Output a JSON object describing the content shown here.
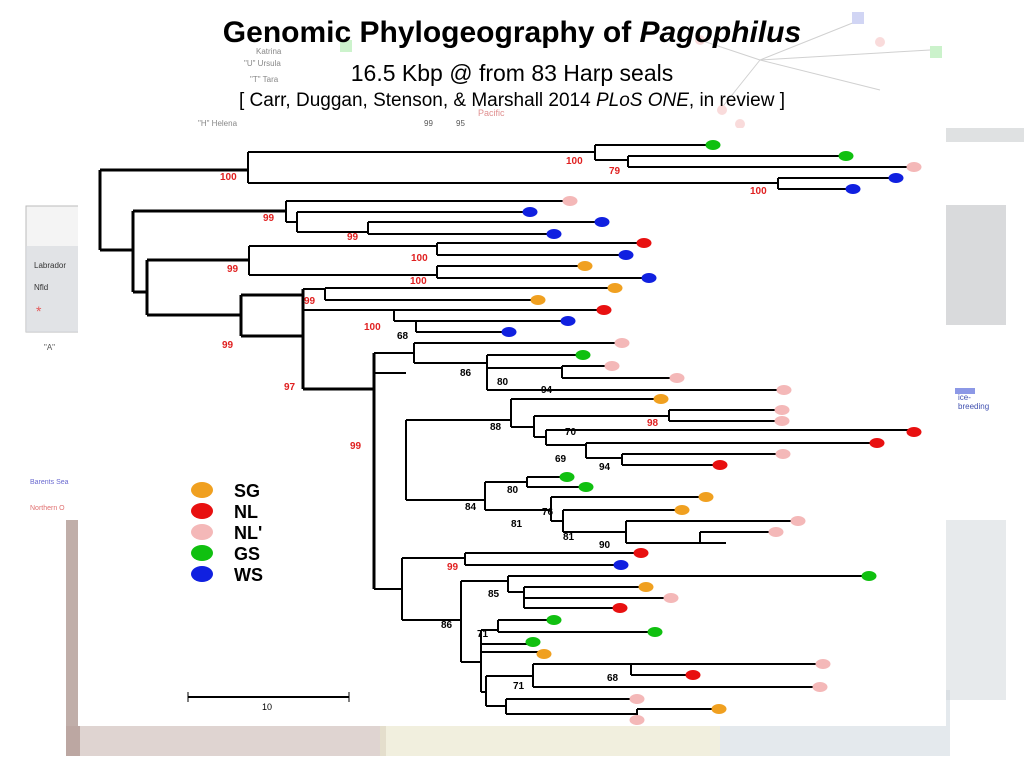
{
  "title": {
    "main_prefix": "Genomic Phylogeography of ",
    "main_italic": "Pagophilus",
    "subtitle": "16.5 Kbp @ from 83 Harp seals",
    "citation_prefix": "[ Carr, Duggan, Stenson, & Marshall 2014 ",
    "citation_italic": "PLoS ONE",
    "citation_suffix": ", in review ]"
  },
  "legend": [
    {
      "code": "SG",
      "color": "#f0a020"
    },
    {
      "code": "NL",
      "color": "#e81010"
    },
    {
      "code": "NL'",
      "color": "#f4b8b8"
    },
    {
      "code": "GS",
      "color": "#10c010"
    },
    {
      "code": "WS",
      "color": "#1020e0"
    }
  ],
  "scale_bar": {
    "label": "10"
  },
  "background_fragments": {
    "labrador": "Labrador",
    "nfld": "Nfld",
    "ice_breeding": "ice-\nbreeding",
    "cell_a": "\"A\"",
    "barents": "Barents Sea",
    "northern": "Northern O",
    "ursula": "\"U\" Ursula",
    "tara": "\"T\" Tara",
    "helena": "\"H\" Helena",
    "katrina": "Katrina",
    "pacific": "Pacific",
    "node99": "99",
    "node95": "95"
  },
  "bootstrap_labels": [
    {
      "text": "100",
      "color": "red"
    },
    {
      "text": "79",
      "color": "red"
    },
    {
      "text": "100",
      "color": "red"
    },
    {
      "text": "100",
      "color": "red"
    },
    {
      "text": "99",
      "color": "red"
    },
    {
      "text": "99",
      "color": "red"
    },
    {
      "text": "99",
      "color": "red"
    },
    {
      "text": "100",
      "color": "red"
    },
    {
      "text": "100",
      "color": "red"
    },
    {
      "text": "99",
      "color": "red"
    },
    {
      "text": "100",
      "color": "red"
    },
    {
      "text": "68",
      "color": "black"
    },
    {
      "text": "99",
      "color": "red"
    },
    {
      "text": "97",
      "color": "red"
    },
    {
      "text": "86",
      "color": "black"
    },
    {
      "text": "80",
      "color": "black"
    },
    {
      "text": "94",
      "color": "black"
    },
    {
      "text": "88",
      "color": "black"
    },
    {
      "text": "98",
      "color": "red"
    },
    {
      "text": "70",
      "color": "black"
    },
    {
      "text": "69",
      "color": "black"
    },
    {
      "text": "94",
      "color": "black"
    },
    {
      "text": "99",
      "color": "red"
    },
    {
      "text": "80",
      "color": "black"
    },
    {
      "text": "84",
      "color": "black"
    },
    {
      "text": "76",
      "color": "black"
    },
    {
      "text": "81",
      "color": "black"
    },
    {
      "text": "81",
      "color": "black"
    },
    {
      "text": "90",
      "color": "black"
    },
    {
      "text": "99",
      "color": "red"
    },
    {
      "text": "85",
      "color": "black"
    },
    {
      "text": "86",
      "color": "black"
    },
    {
      "text": "71",
      "color": "black"
    },
    {
      "text": "68",
      "color": "black"
    },
    {
      "text": "71",
      "color": "black"
    }
  ],
  "tips": [
    {
      "region": "GS"
    },
    {
      "region": "GS"
    },
    {
      "region": "NL'"
    },
    {
      "region": "WS"
    },
    {
      "region": "WS"
    },
    {
      "region": "NL'"
    },
    {
      "region": "WS"
    },
    {
      "region": "WS"
    },
    {
      "region": "WS"
    },
    {
      "region": "NL"
    },
    {
      "region": "WS"
    },
    {
      "region": "SG"
    },
    {
      "region": "WS"
    },
    {
      "region": "SG"
    },
    {
      "region": "SG"
    },
    {
      "region": "NL"
    },
    {
      "region": "WS"
    },
    {
      "region": "WS"
    },
    {
      "region": "NL'"
    },
    {
      "region": "GS"
    },
    {
      "region": "NL'"
    },
    {
      "region": "NL'"
    },
    {
      "region": "NL'"
    },
    {
      "region": "SG"
    },
    {
      "region": "NL'"
    },
    {
      "region": "NL'"
    },
    {
      "region": "NL"
    },
    {
      "region": "NL"
    },
    {
      "region": "NL'"
    },
    {
      "region": "NL"
    },
    {
      "region": "GS"
    },
    {
      "region": "GS"
    },
    {
      "region": "SG"
    },
    {
      "region": "SG"
    },
    {
      "region": "NL'"
    },
    {
      "region": "NL'"
    },
    {
      "region": "NL"
    },
    {
      "region": "WS"
    },
    {
      "region": "GS"
    },
    {
      "region": "SG"
    },
    {
      "region": "NL'"
    },
    {
      "region": "NL"
    },
    {
      "region": "GS"
    },
    {
      "region": "GS"
    },
    {
      "region": "GS"
    },
    {
      "region": "SG"
    },
    {
      "region": "NL'"
    },
    {
      "region": "NL"
    },
    {
      "region": "NL'"
    },
    {
      "region": "NL'"
    },
    {
      "region": "SG"
    },
    {
      "region": "NL'"
    }
  ]
}
